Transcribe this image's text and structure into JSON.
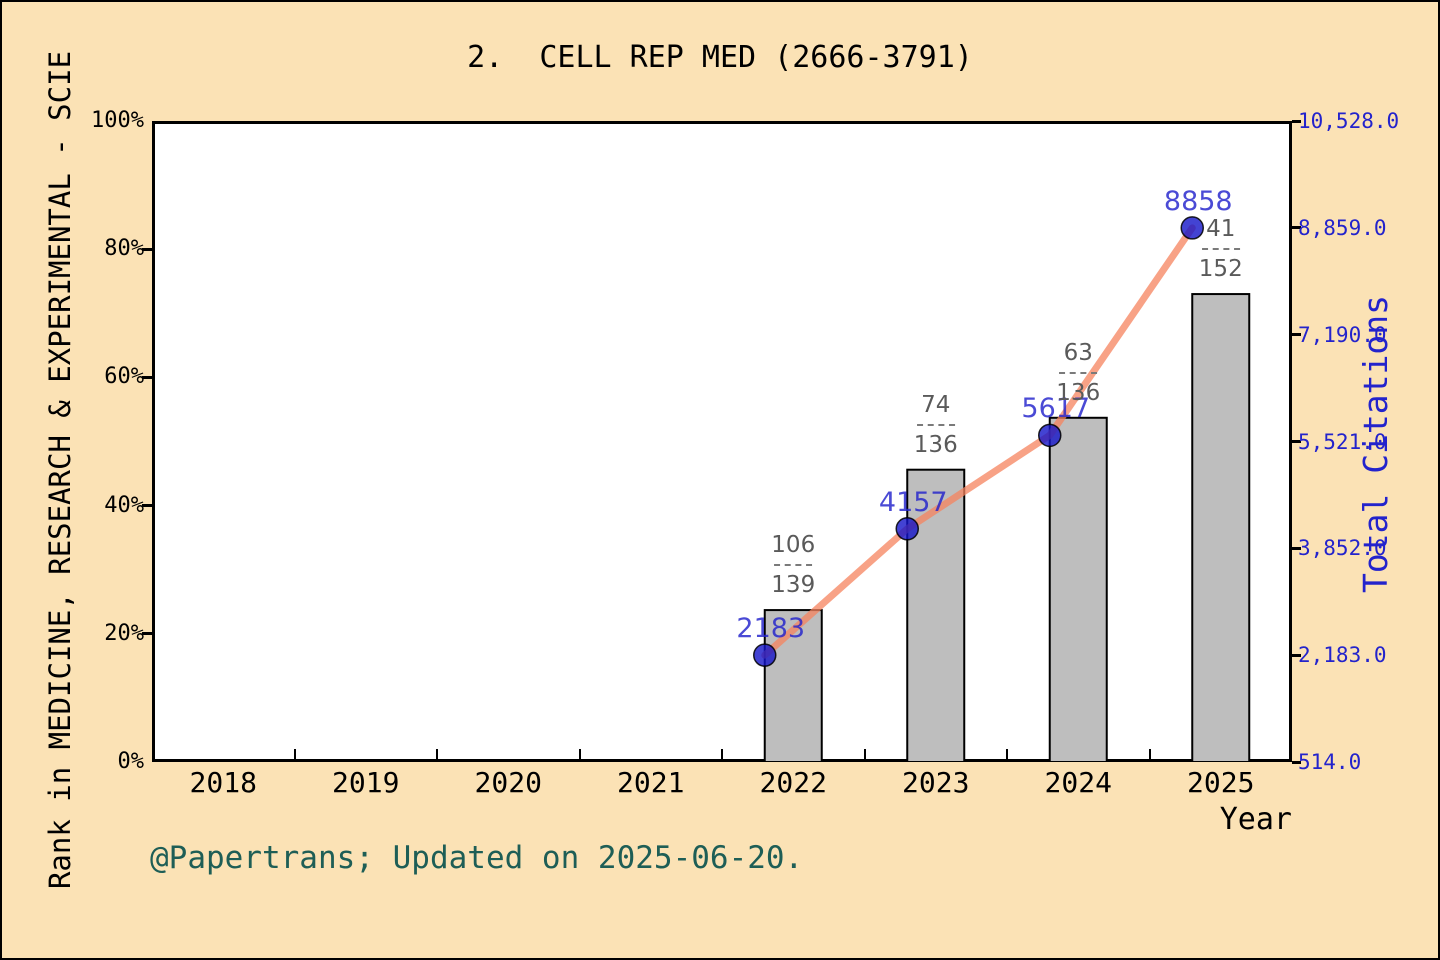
{
  "title": "2.  CELL REP MED (2666-3791)",
  "footer": "@Papertrans; Updated on 2025-06-20.",
  "x_axis": {
    "label": "Year",
    "categories": [
      "2018",
      "2019",
      "2020",
      "2021",
      "2022",
      "2023",
      "2024",
      "2025"
    ]
  },
  "left_axis": {
    "label": "Rank in MEDICINE, RESEARCH & EXPERIMENTAL - SCIE",
    "ticks": [
      {
        "label": "0%",
        "value": 0
      },
      {
        "label": "20%",
        "value": 20
      },
      {
        "label": "40%",
        "value": 40
      },
      {
        "label": "60%",
        "value": 60
      },
      {
        "label": "80%",
        "value": 80
      },
      {
        "label": "100%",
        "value": 100
      }
    ]
  },
  "right_axis": {
    "label": "Total Citations",
    "ticks": [
      {
        "label": "514.0",
        "value": 514
      },
      {
        "label": "2,183.0",
        "value": 2183
      },
      {
        "label": "3,852.0",
        "value": 3852
      },
      {
        "label": "5,521.0",
        "value": 5521
      },
      {
        "label": "7,190.0",
        "value": 7190
      },
      {
        "label": "8,859.0",
        "value": 8859
      },
      {
        "label": "10,528.0",
        "value": 10528
      }
    ]
  },
  "chart_data": {
    "type": "bar+line",
    "x": [
      2022,
      2023,
      2024,
      2025
    ],
    "x_axis_range": [
      2018,
      2025
    ],
    "left_axis_range": [
      0,
      100
    ],
    "right_axis_range": [
      514,
      10528
    ],
    "grid": false,
    "legend": "none",
    "series": [
      {
        "name": "rank-percentile-bars",
        "type": "bar",
        "axis": "left",
        "values_percent": [
          23.7,
          45.6,
          53.7,
          73.0
        ],
        "rank_fractions": [
          {
            "numerator": "106",
            "denominator": "139"
          },
          {
            "numerator": "74",
            "denominator": "136"
          },
          {
            "numerator": "63",
            "denominator": "136"
          },
          {
            "numerator": "41",
            "denominator": "152"
          }
        ]
      },
      {
        "name": "total-citations-line",
        "type": "line",
        "axis": "right",
        "values": [
          2183,
          4157,
          5617,
          8858
        ],
        "point_labels": [
          "2183",
          "4157",
          "5617",
          "8858"
        ]
      }
    ]
  },
  "colors": {
    "background": "#FBE2B5",
    "plot_background": "#FFFFFF",
    "border": "#000000",
    "bar_fill": "#BEBEBE",
    "bar_border": "#000000",
    "line": "#F5835E",
    "marker": "#1414C8",
    "accent_blue": "#2323CC",
    "fraction_text": "#5A5A5A",
    "footer_text": "#1E5E56"
  }
}
